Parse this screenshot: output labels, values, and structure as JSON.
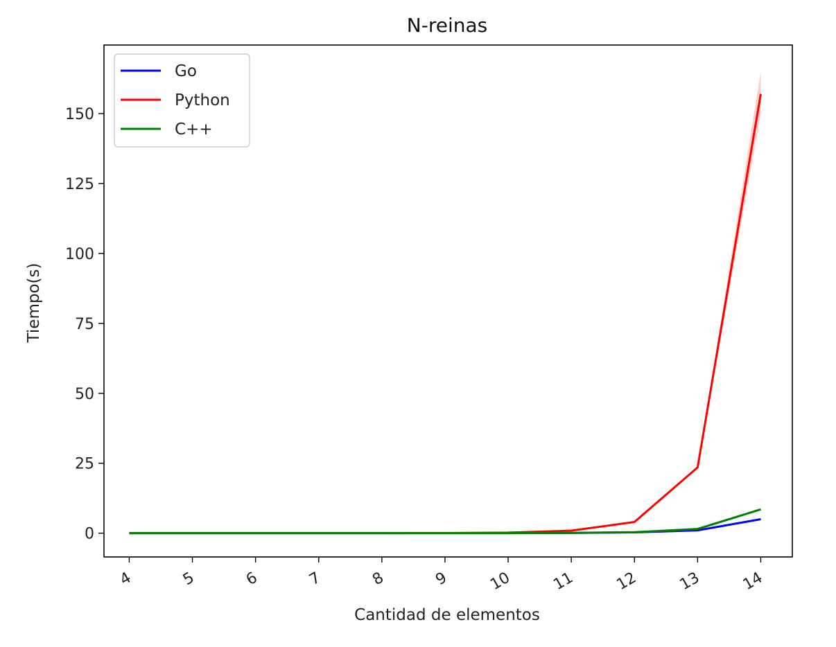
{
  "chart_data": {
    "type": "line",
    "title": "N-reinas",
    "xlabel": "Cantidad de elementos",
    "ylabel": "Tiempo(s)",
    "x": [
      4,
      5,
      6,
      7,
      8,
      9,
      10,
      11,
      12,
      13,
      14
    ],
    "x_tick_labels": [
      "4",
      "5",
      "6",
      "7",
      "8",
      "9",
      "10",
      "11",
      "12",
      "13",
      "14"
    ],
    "y_ticks": [
      0,
      25,
      50,
      75,
      100,
      125,
      150
    ],
    "y_tick_labels": [
      "0",
      "25",
      "50",
      "75",
      "100",
      "125",
      "150"
    ],
    "xlim": [
      3.6,
      14.5
    ],
    "ylim": [
      -8.5,
      174.5
    ],
    "grid": false,
    "legend_position": "top-left",
    "series": [
      {
        "name": "Go",
        "color": "#0000ff",
        "values": [
          0,
          0,
          0,
          0,
          0,
          0,
          0.02,
          0.08,
          0.3,
          1.0,
          5.0
        ],
        "band": null
      },
      {
        "name": "Python",
        "color": "#ff0000",
        "values": [
          0,
          0,
          0,
          0,
          0,
          0.05,
          0.2,
          0.9,
          4.0,
          23.5,
          157.0
        ],
        "band": {
          "lower": [
            0,
            0,
            0,
            0,
            0,
            0.05,
            0.2,
            0.9,
            4.0,
            23.2,
            150.0
          ],
          "upper": [
            0,
            0,
            0,
            0,
            0,
            0.05,
            0.2,
            0.9,
            4.0,
            23.8,
            165.0
          ]
        }
      },
      {
        "name": "C++",
        "color": "#008000",
        "values": [
          0,
          0,
          0,
          0,
          0,
          0,
          0.02,
          0.1,
          0.35,
          1.5,
          8.5
        ],
        "band": null
      }
    ]
  }
}
